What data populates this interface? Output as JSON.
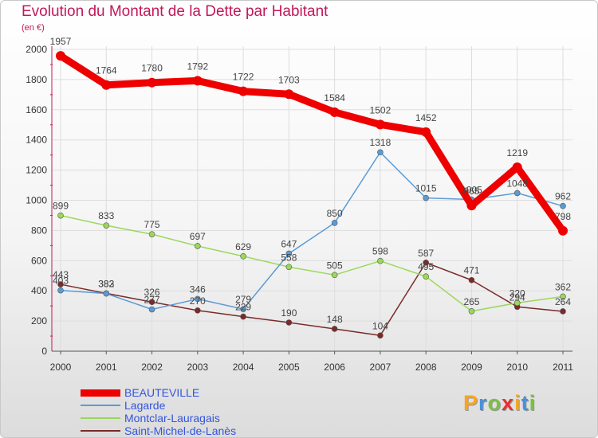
{
  "chart_data": {
    "type": "line",
    "title": "Evolution du Montant de la Dette par Habitant",
    "subtitle": "(en €)",
    "x": [
      "2000",
      "2001",
      "2002",
      "2003",
      "2004",
      "2005",
      "2006",
      "2007",
      "2008",
      "2009",
      "2010",
      "2011"
    ],
    "yticks": [
      0,
      200,
      400,
      600,
      800,
      1000,
      1200,
      1400,
      1600,
      1800,
      2000
    ],
    "ylim": [
      0,
      2000
    ],
    "grid": true,
    "legend_position": "bottom-left",
    "series": [
      {
        "name": "BEAUTEVILLE",
        "color": "#ee0000",
        "values": [
          1957,
          1764,
          1780,
          1792,
          1722,
          1703,
          1584,
          1502,
          1452,
          965,
          1219,
          798
        ]
      },
      {
        "name": "Lagarde",
        "color": "#5b9bd5",
        "values": [
          403,
          382,
          277,
          346,
          279,
          647,
          850,
          1318,
          1015,
          1005,
          1048,
          962
        ]
      },
      {
        "name": "Montclar-Lauragais",
        "color": "#9ad85a",
        "values": [
          899,
          833,
          775,
          697,
          629,
          558,
          505,
          598,
          495,
          265,
          320,
          362
        ]
      },
      {
        "name": "Saint-Michel-de-Lanès",
        "color": "#7a2a2a",
        "values": [
          443,
          383,
          326,
          270,
          229,
          190,
          148,
          104,
          587,
          471,
          294,
          264
        ]
      }
    ]
  },
  "logo": {
    "letters": [
      "P",
      "r",
      "o",
      "x",
      "i",
      "t",
      "i"
    ],
    "colors": [
      "#f5a623",
      "#4a90d9",
      "#7ac143",
      "#e8312f",
      "#f5a623",
      "#4a90d9",
      "#7ac143"
    ]
  }
}
